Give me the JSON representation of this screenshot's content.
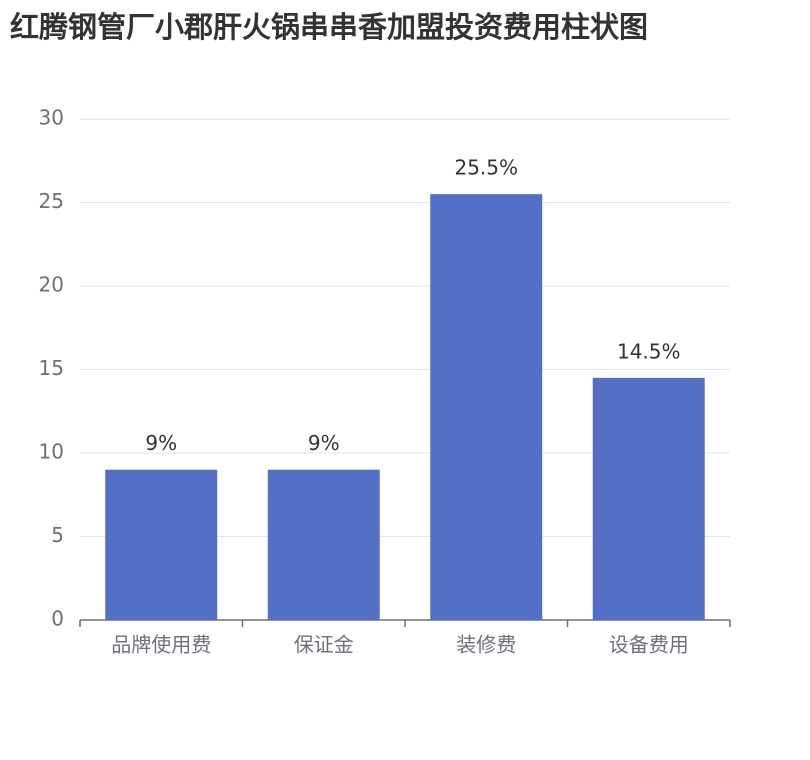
{
  "chart_data": {
    "type": "bar",
    "title": "红腾钢管厂小郡肝火锅串串香加盟投资费用柱状图",
    "categories": [
      "品牌使用费",
      "保证金",
      "装修费",
      "设备费用"
    ],
    "values": [
      9,
      9,
      25.5,
      14.5
    ],
    "value_labels": [
      "9%",
      "9%",
      "25.5%",
      "14.5%"
    ],
    "color": "#5470c6",
    "ylim": [
      0,
      30
    ],
    "yticks": [
      0,
      5,
      10,
      15,
      20,
      25,
      30
    ],
    "grid": true
  }
}
